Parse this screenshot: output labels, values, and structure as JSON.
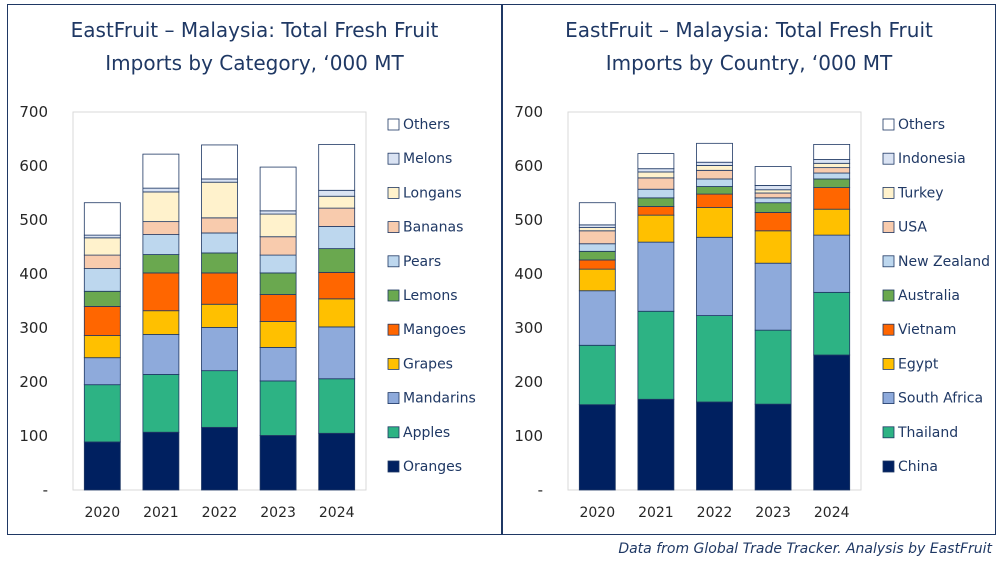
{
  "footer": "Data from Global Trade Tracker. Analysis by EastFruit",
  "chart_data": [
    {
      "type": "bar",
      "stacked": true,
      "title": [
        "EastFruit – Malaysia: Total Fresh Fruit",
        "Imports by Category, ‘000 MT"
      ],
      "categories": [
        "2020",
        "2021",
        "2022",
        "2023",
        "2024"
      ],
      "ylim": [
        0,
        700
      ],
      "yticks": [
        "-",
        "100",
        "200",
        "300",
        "400",
        "500",
        "600",
        "700"
      ],
      "grid": false,
      "legend_position": "right",
      "series": [
        {
          "name": "Oranges",
          "color": "#002060",
          "values": [
            89,
            107,
            116,
            101,
            105
          ]
        },
        {
          "name": "Apples",
          "color": "#2db384",
          "values": [
            106,
            107,
            105,
            101,
            101
          ]
        },
        {
          "name": "Mandarins",
          "color": "#8eaadb",
          "values": [
            50,
            74,
            80,
            62,
            96
          ]
        },
        {
          "name": "Grapes",
          "color": "#ffc000",
          "values": [
            41,
            44,
            43,
            48,
            52
          ]
        },
        {
          "name": "Mangoes",
          "color": "#ff6600",
          "values": [
            54,
            70,
            58,
            50,
            49
          ]
        },
        {
          "name": "Lemons",
          "color": "#6aa84f",
          "values": [
            28,
            34,
            37,
            40,
            44
          ]
        },
        {
          "name": "Pears",
          "color": "#bdd7ee",
          "values": [
            42,
            37,
            37,
            33,
            41
          ]
        },
        {
          "name": "Bananas",
          "color": "#f8cbad",
          "values": [
            25,
            24,
            28,
            34,
            34
          ]
        },
        {
          "name": "Longans",
          "color": "#fff2cc",
          "values": [
            32,
            55,
            66,
            42,
            22
          ]
        },
        {
          "name": "Melons",
          "color": "#dae3f3",
          "values": [
            5,
            7,
            6,
            6,
            11
          ]
        },
        {
          "name": "Others",
          "color": "#ffffff",
          "values": [
            60,
            63,
            63,
            81,
            85
          ]
        }
      ]
    },
    {
      "type": "bar",
      "stacked": true,
      "title": [
        "EastFruit – Malaysia: Total Fresh Fruit",
        "Imports by Country, ‘000 MT"
      ],
      "categories": [
        "2020",
        "2021",
        "2022",
        "2023",
        "2024"
      ],
      "ylim": [
        0,
        700
      ],
      "yticks": [
        "-",
        "100",
        "200",
        "300",
        "400",
        "500",
        "600",
        "700"
      ],
      "grid": false,
      "legend_position": "right",
      "series": [
        {
          "name": "China",
          "color": "#002060",
          "values": [
            158,
            168,
            163,
            159,
            250
          ]
        },
        {
          "name": "Thailand",
          "color": "#2db384",
          "values": [
            110,
            163,
            160,
            137,
            116
          ]
        },
        {
          "name": "South Africa",
          "color": "#8eaadb",
          "values": [
            101,
            128,
            145,
            124,
            106
          ]
        },
        {
          "name": "Egypt",
          "color": "#ffc000",
          "values": [
            40,
            50,
            55,
            60,
            48
          ]
        },
        {
          "name": "Vietnam",
          "color": "#ff6600",
          "values": [
            17,
            16,
            25,
            34,
            40
          ]
        },
        {
          "name": "Australia",
          "color": "#6aa84f",
          "values": [
            16,
            16,
            14,
            18,
            16
          ]
        },
        {
          "name": "New Zealand",
          "color": "#bdd7ee",
          "values": [
            14,
            16,
            14,
            9,
            11
          ]
        },
        {
          "name": "USA",
          "color": "#f8cbad",
          "values": [
            24,
            21,
            16,
            9,
            10
          ]
        },
        {
          "name": "Turkey",
          "color": "#fff2cc",
          "values": [
            6,
            11,
            9,
            6,
            8
          ]
        },
        {
          "name": "Indonesia",
          "color": "#dae3f3",
          "values": [
            5,
            6,
            6,
            8,
            7
          ]
        },
        {
          "name": "Others",
          "color": "#ffffff",
          "values": [
            41,
            28,
            35,
            35,
            28
          ]
        }
      ]
    }
  ]
}
